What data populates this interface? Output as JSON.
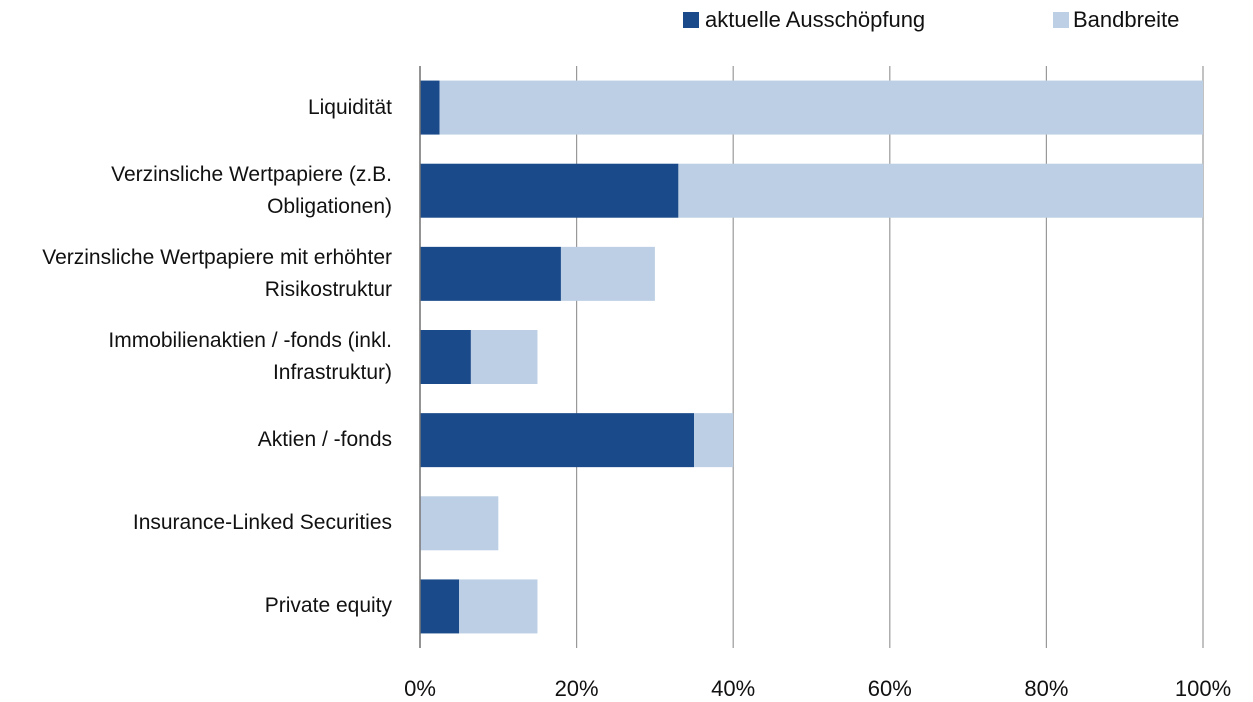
{
  "chart_data": {
    "type": "stacked_barh",
    "categories": [
      "Liquidität",
      "Verzinsliche Wertpapiere (z.B. Obligationen)",
      "Verzinsliche Wertpapiere mit erhöhter Risikostruktur",
      "Immobilienaktien / -fonds (inkl. Infrastruktur)",
      "Aktien / -fonds",
      "Insurance-Linked Securities",
      "Private equity"
    ],
    "series": [
      {
        "name": "aktuelle Ausschöpfung",
        "color": "#1a4a8a",
        "values": [
          2.5,
          33,
          18,
          6.5,
          35,
          0,
          5
        ]
      },
      {
        "name": "Bandbreite",
        "color": "#bccfe4",
        "values": [
          97.5,
          67,
          12,
          8.5,
          5,
          10,
          10
        ]
      }
    ],
    "xlim": [
      0,
      100
    ],
    "xticks": [
      {
        "value": 0,
        "label": "0%"
      },
      {
        "value": 20,
        "label": "20%"
      },
      {
        "value": 40,
        "label": "40%"
      },
      {
        "value": 60,
        "label": "60%"
      },
      {
        "value": 80,
        "label": "80%"
      },
      {
        "value": 100,
        "label": "100%"
      }
    ],
    "grid": true,
    "legend": "top-right"
  }
}
